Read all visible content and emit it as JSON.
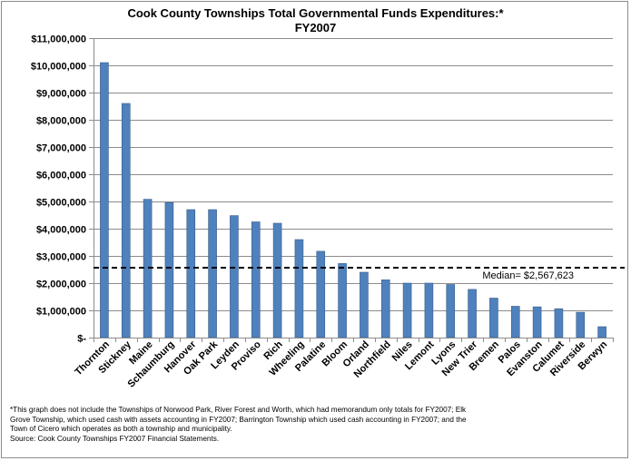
{
  "chart_data": {
    "type": "bar",
    "title": "Cook County Townships Total Governmental Funds Expenditures:*\nFY2007",
    "xlabel": "",
    "ylabel": "",
    "ylim": [
      0,
      11000000
    ],
    "yticks": [
      0,
      1000000,
      2000000,
      3000000,
      4000000,
      5000000,
      6000000,
      7000000,
      8000000,
      9000000,
      10000000,
      11000000
    ],
    "ytick_labels": [
      "$-",
      "$1,000,000",
      "$2,000,000",
      "$3,000,000",
      "$4,000,000",
      "$5,000,000",
      "$6,000,000",
      "$7,000,000",
      "$8,000,000",
      "$9,000,000",
      "$10,000,000",
      "$11,000,000"
    ],
    "categories": [
      "Thornton",
      "Stickney",
      "Maine",
      "Schaumburg",
      "Hanover",
      "Oak Park",
      "Leyden",
      "Proviso",
      "Rich",
      "Wheeling",
      "Palatine",
      "Bloom",
      "Orland",
      "Northfield",
      "Niles",
      "Lemont",
      "Lyons",
      "New Trier",
      "Bremen",
      "Palos",
      "Evanston",
      "Calumet",
      "Riverside",
      "Berwyn"
    ],
    "values": [
      10100000,
      8600000,
      5080000,
      4960000,
      4700000,
      4700000,
      4480000,
      4250000,
      4200000,
      3600000,
      3170000,
      2720000,
      2400000,
      2120000,
      2000000,
      2000000,
      1950000,
      1770000,
      1450000,
      1150000,
      1130000,
      1060000,
      930000,
      400000
    ],
    "median": {
      "value": 2567623,
      "label": "Median= $2,567,623"
    },
    "grid": true,
    "legend": "none",
    "bar_color": "#4f81bd",
    "bar_edge_color": "#385d8a"
  },
  "footnote": [
    "*This graph does not include the Townships of Norwood Park, River Forest and Worth,  which had memorandum only totals for FY2007; Elk",
    "Grove Township, which used cash with assets accounting in FY2007; Barrington Township which used cash accounting in  FY2007; and the",
    "Town of Cicero which operates as both a township and municipality.",
    "Source: Cook County Townships FY2007 Financial Statements."
  ]
}
